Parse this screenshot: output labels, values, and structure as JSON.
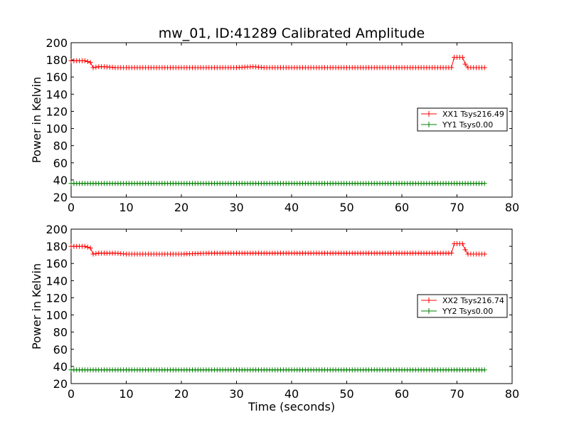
{
  "title": "mw_01, ID:41289 Calibrated Amplitude",
  "colors": {
    "xx": "#ff0000",
    "yy": "#008000"
  },
  "chart_data": [
    {
      "type": "line",
      "title": "mw_01, ID:41289 Calibrated Amplitude",
      "xlabel": "",
      "ylabel": "Power in Kelvin",
      "xlim": [
        0,
        80
      ],
      "ylim": [
        20,
        200
      ],
      "xticks": [
        "0",
        "10",
        "20",
        "30",
        "40",
        "50",
        "60",
        "70",
        "80"
      ],
      "yticks": [
        "20",
        "40",
        "60",
        "80",
        "100",
        "120",
        "140",
        "160",
        "180",
        "200"
      ],
      "grid": false,
      "legend_position": "right",
      "marker": "+",
      "series": [
        {
          "name": "XX1 Tsys216.49",
          "color": "#ff0000",
          "x": [
            0,
            0.5,
            1,
            1.5,
            2,
            2.5,
            3,
            3.5,
            4,
            5,
            6,
            8,
            10,
            15,
            20,
            25,
            30,
            33,
            35,
            40,
            45,
            50,
            55,
            60,
            65,
            68,
            69,
            69.5,
            70,
            70.5,
            71,
            71.5,
            72,
            73,
            74,
            75
          ],
          "y": [
            179,
            179,
            179,
            179,
            179,
            179,
            178,
            177,
            171,
            172,
            172,
            171,
            171,
            171,
            171,
            171,
            171,
            172,
            171,
            171,
            171,
            171,
            171,
            171,
            171,
            171,
            171,
            183,
            183,
            183,
            183,
            175,
            171,
            171,
            171,
            171
          ]
        },
        {
          "name": "YY1 Tsys0.00",
          "color": "#008000",
          "x": [
            0,
            10,
            20,
            30,
            40,
            50,
            60,
            70,
            75
          ],
          "y": [
            36,
            36,
            36,
            36,
            36,
            36,
            36,
            36,
            36
          ]
        }
      ]
    },
    {
      "type": "line",
      "title": "",
      "xlabel": "Time (seconds)",
      "ylabel": "Power in Kelvin",
      "xlim": [
        0,
        80
      ],
      "ylim": [
        20,
        200
      ],
      "xticks": [
        "0",
        "10",
        "20",
        "30",
        "40",
        "50",
        "60",
        "70",
        "80"
      ],
      "yticks": [
        "20",
        "40",
        "60",
        "80",
        "100",
        "120",
        "140",
        "160",
        "180",
        "200"
      ],
      "grid": false,
      "legend_position": "right",
      "marker": "+",
      "series": [
        {
          "name": "XX2 Tsys216.74",
          "color": "#ff0000",
          "x": [
            0,
            0.5,
            1,
            1.5,
            2,
            2.5,
            3,
            3.5,
            4,
            5,
            6,
            8,
            10,
            15,
            20,
            25,
            30,
            35,
            40,
            45,
            50,
            55,
            60,
            65,
            68,
            69,
            69.5,
            70,
            70.5,
            71,
            71.5,
            72,
            73,
            74,
            75
          ],
          "y": [
            180,
            180,
            180,
            180,
            180,
            180,
            179,
            178,
            171,
            172,
            172,
            172,
            171,
            171,
            171,
            172,
            172,
            172,
            172,
            172,
            172,
            172,
            172,
            172,
            172,
            172,
            183,
            183,
            183,
            183,
            176,
            171,
            171,
            171,
            171
          ]
        },
        {
          "name": "YY2 Tsys0.00",
          "color": "#008000",
          "x": [
            0,
            10,
            20,
            30,
            40,
            50,
            60,
            70,
            75
          ],
          "y": [
            36,
            36,
            36,
            36,
            36,
            36,
            36,
            36,
            36
          ]
        }
      ]
    }
  ]
}
